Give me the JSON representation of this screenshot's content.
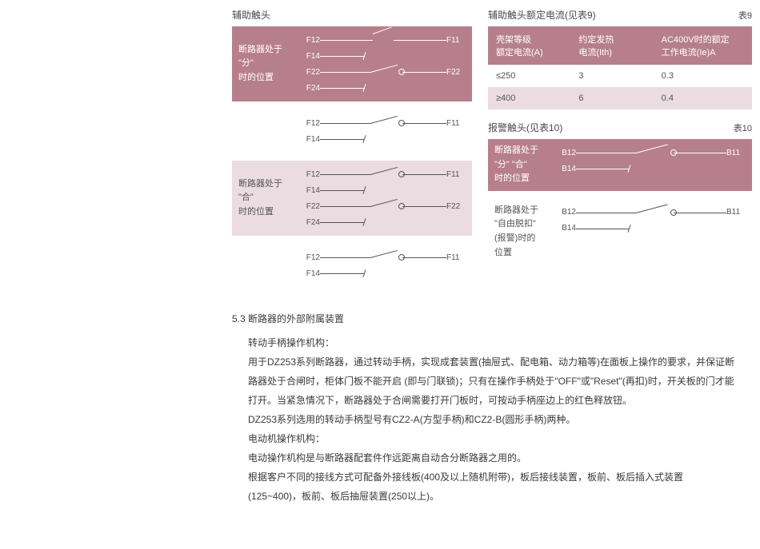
{
  "colors": {
    "rose": "#b77f8b",
    "pink": "#eadce1",
    "text": "#3a3a3a",
    "white": "#ffffff",
    "labelGrey": "#555555"
  },
  "left": {
    "title": "辅助触头",
    "panels": [
      {
        "style": "rose",
        "label_lines": [
          "断路器处于",
          "\"分\"",
          "时的位置"
        ],
        "rows": [
          {
            "left": "F12",
            "kind": "nc",
            "right": "F11"
          },
          {
            "left": "F14",
            "kind": "stub",
            "right": ""
          },
          {
            "left": "F22",
            "kind": "no",
            "right": "F22"
          },
          {
            "left": "F24",
            "kind": "stub",
            "right": ""
          }
        ]
      },
      {
        "style": "plain",
        "label_lines": [],
        "rows": [
          {
            "left": "F12",
            "kind": "no",
            "right": "F11"
          },
          {
            "left": "F14",
            "kind": "stub",
            "right": ""
          }
        ]
      },
      {
        "style": "pink",
        "label_lines": [
          "断路器处于",
          "\"合\"",
          "时的位置"
        ],
        "rows": [
          {
            "left": "F12",
            "kind": "no",
            "right": "F11"
          },
          {
            "left": "F14",
            "kind": "stub",
            "right": ""
          },
          {
            "left": "F22",
            "kind": "no",
            "right": "F22"
          },
          {
            "left": "F24",
            "kind": "stub",
            "right": ""
          }
        ]
      },
      {
        "style": "plain",
        "label_lines": [],
        "rows": [
          {
            "left": "F12",
            "kind": "no",
            "right": "F11"
          },
          {
            "left": "F14",
            "kind": "stub",
            "right": ""
          }
        ]
      }
    ]
  },
  "right": {
    "table_title": "辅助触头额定电流(见表9)",
    "table_no": "表9",
    "table": {
      "headers": [
        "壳架等级\n额定电流(A)",
        "约定发热\n电流(Ith)",
        "AC400V时的额定\n工作电流(Ie)A"
      ],
      "rows": [
        {
          "c1": "≤250",
          "c2": "3",
          "c3": "0.3"
        },
        {
          "c1": "≥400",
          "c2": "6",
          "c3": "0.4"
        }
      ]
    },
    "alarm_title": "报警触头(见表10)",
    "alarm_no": "表10",
    "panels": [
      {
        "style": "rose",
        "label_lines": [
          "断路器处于",
          "\"分\" \"合\"",
          "时的位置"
        ],
        "rows": [
          {
            "left": "B12",
            "kind": "no",
            "right": "B11"
          },
          {
            "left": "B14",
            "kind": "stub",
            "right": ""
          }
        ]
      },
      {
        "style": "plain",
        "label_lines": [
          "断路器处于",
          "\"自由脱扣\"",
          "(报警)时的位置"
        ],
        "rows": [
          {
            "left": "B12",
            "kind": "no",
            "right": "B11"
          },
          {
            "left": "B14",
            "kind": "stub",
            "right": ""
          }
        ]
      }
    ]
  },
  "bottom": {
    "heading": "5.3 断路器的外部附属装置",
    "sub1": "转动手柄操作机构：",
    "p1": "用于DZ253系列断路器，通过转动手柄，实现成套装置(抽屉式、配电箱、动力箱等)在面板上操作的要求，并保证断路器处于合闸时，柜体门板不能开启 (即与门联锁)；只有在操作手柄处于\"OFF\"或\"Reset\"(再扣)时，开关板的门才能打开。当紧急情况下，断路器处于合闸需要打开门板时，可按动手柄座边上的红色释放钮。",
    "p2": "DZ253系列选用的转动手柄型号有CZ2-A(方型手柄)和CZ2-B(圆形手柄)两种。",
    "sub2": "电动机操作机构：",
    "p3": "电动操作机构是与断路器配套件作远距离自动合分断路器之用的。",
    "p4": "根据客户不同的接线方式可配备外接线板(400及以上随机附带)，板后接线装置，板前、板后插入式装置(125~400)，板前、板后抽屉装置(250以上)。"
  }
}
